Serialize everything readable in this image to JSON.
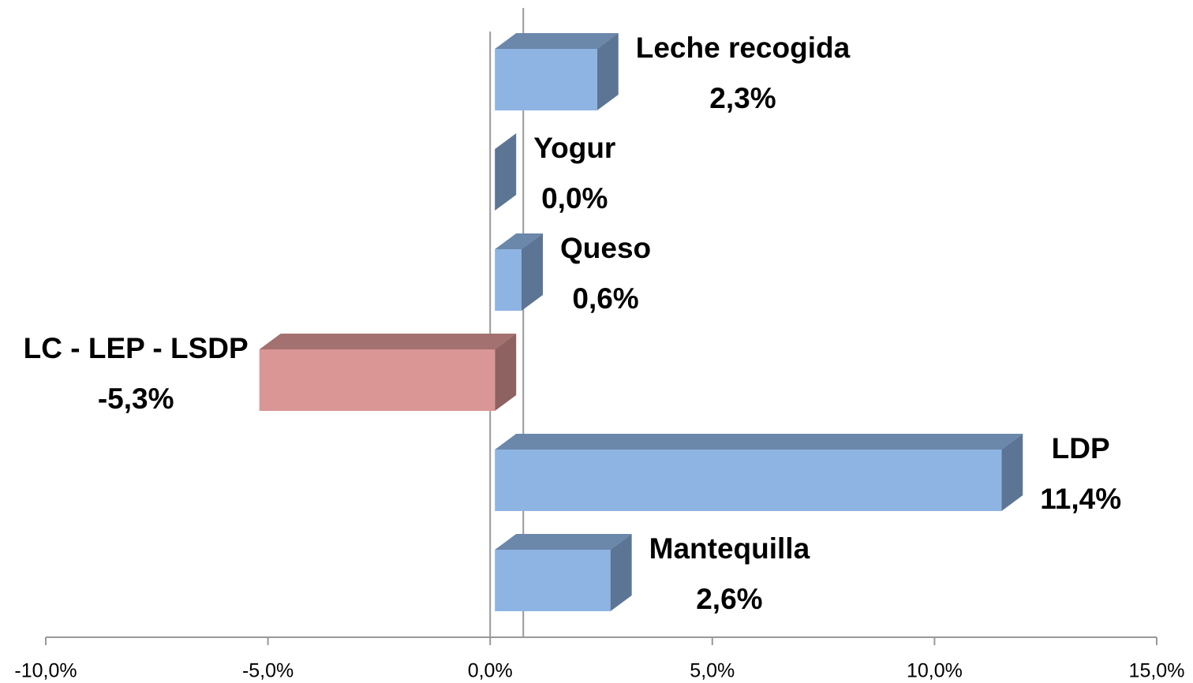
{
  "chart_data": {
    "type": "bar3d_horizontal",
    "categories": [
      "Leche recogida",
      "Yogur",
      "Queso",
      "LC - LEP - LSDP",
      "LDP",
      "Mantequilla"
    ],
    "values": [
      2.3,
      0.0,
      0.6,
      -5.3,
      11.4,
      2.6
    ],
    "value_labels": [
      "2,3%",
      "0,0%",
      "0,6%",
      "-5,3%",
      "11,4%",
      "2,6%"
    ],
    "colors": [
      "#8eb4e3",
      "#8eb4e3",
      "#8eb4e3",
      "#d99694",
      "#8eb4e3",
      "#8eb4e3"
    ],
    "xlim": [
      -10,
      15
    ],
    "xticks": [
      {
        "value": -10,
        "label": "-10,0%"
      },
      {
        "value": -5,
        "label": "-5,0%"
      },
      {
        "value": 0,
        "label": "0,0%"
      },
      {
        "value": 5,
        "label": "5,0%"
      },
      {
        "value": 10,
        "label": "10,0%"
      },
      {
        "value": 15,
        "label": "15,0%"
      }
    ],
    "grid": false
  }
}
